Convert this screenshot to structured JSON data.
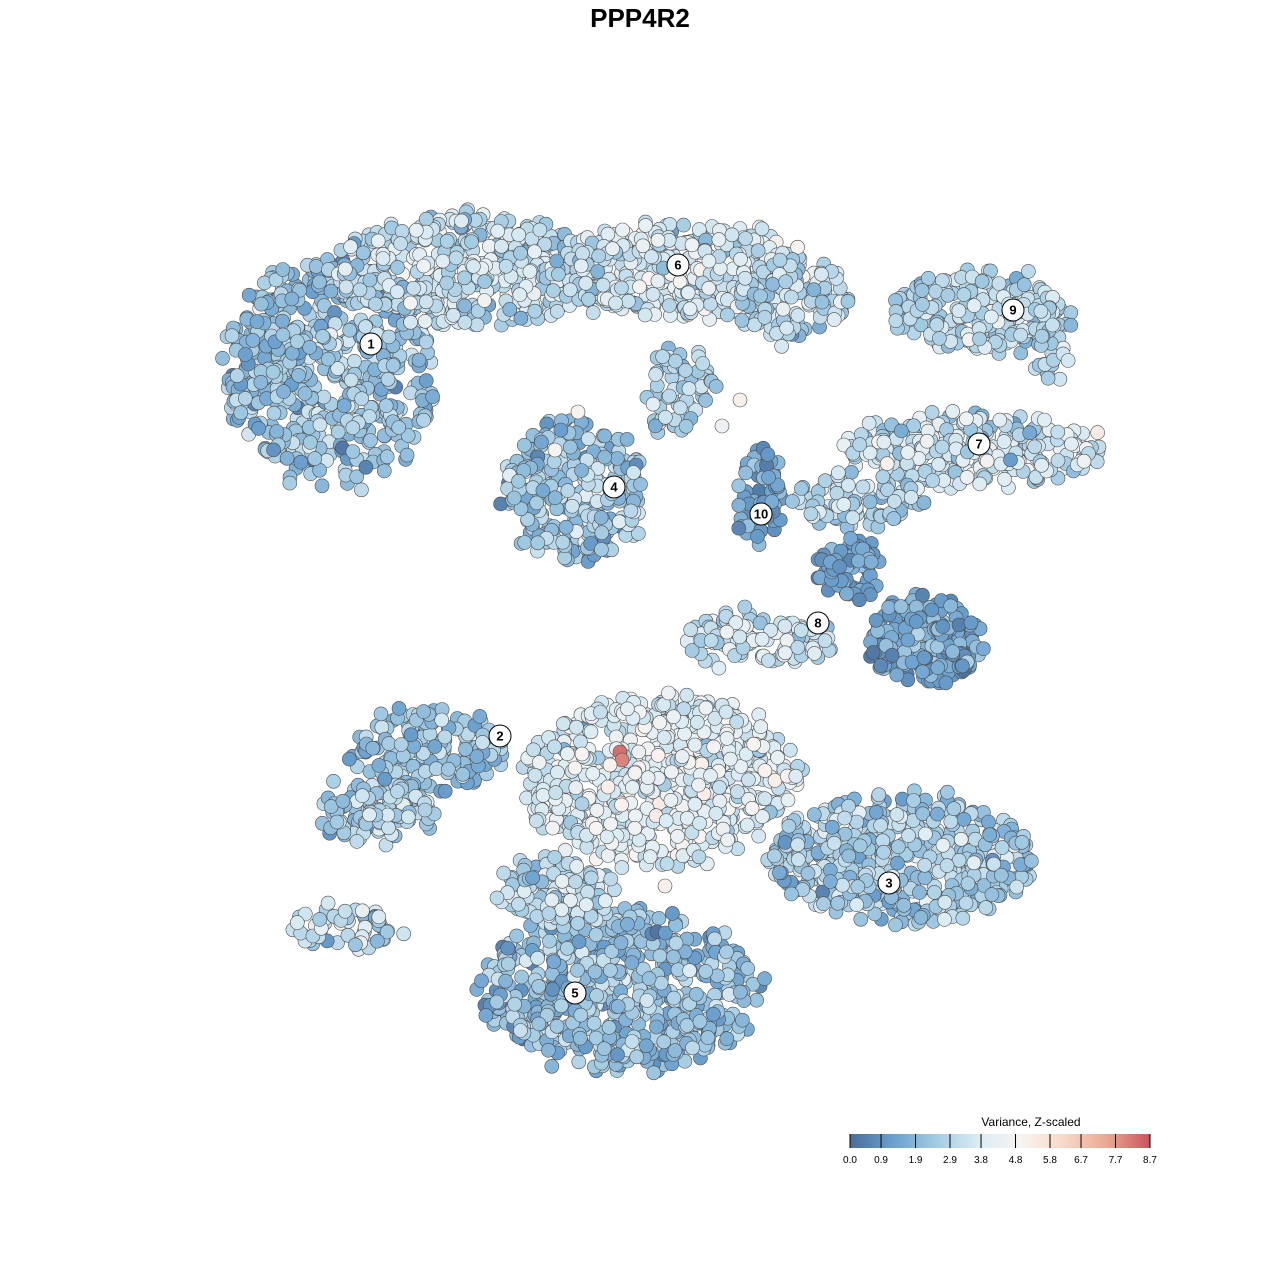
{
  "chart_data": {
    "type": "scatter",
    "title": "PPP4R2",
    "xlabel": "",
    "ylabel": "",
    "grid": false,
    "legend_position": "bottom-right",
    "legend": {
      "title": "Variance, Z-scaled",
      "ticks": [
        "0.0",
        "0.9",
        "1.9",
        "2.9",
        "3.8",
        "4.8",
        "5.8",
        "6.7",
        "7.7",
        "8.7"
      ],
      "range": [
        0.0,
        8.7
      ],
      "colors": [
        "#4a6d99",
        "#6aa0cf",
        "#a3cbe3",
        "#dcecf4",
        "#f8f4f2",
        "#f8d8c8",
        "#eaa891",
        "#c8545e"
      ]
    },
    "clusters": [
      {
        "label": "1"
      },
      {
        "label": "2"
      },
      {
        "label": "3"
      },
      {
        "label": "4"
      },
      {
        "label": "5"
      },
      {
        "label": "6"
      },
      {
        "label": "7"
      },
      {
        "label": "8"
      },
      {
        "label": "9"
      },
      {
        "label": "10"
      }
    ]
  }
}
